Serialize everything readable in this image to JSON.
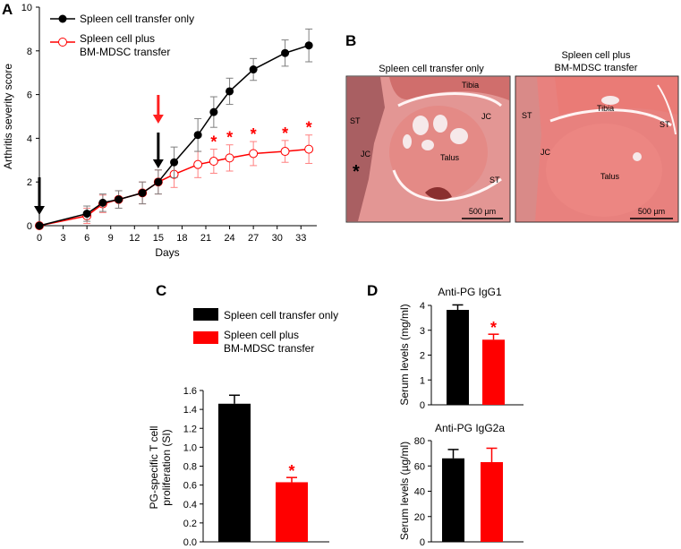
{
  "colors": {
    "control": "#000000",
    "treated": "#ff0000",
    "star": "#ff0000",
    "tissue": "#d87b78",
    "tissue_dark": "#b35a5a",
    "cartilage": "#f6e9ea",
    "background": "#ffffff"
  },
  "panel_labels": {
    "a": "A",
    "b": "B",
    "c": "C",
    "d": "D"
  },
  "chart_data": [
    {
      "id": "A",
      "type": "line",
      "title": "",
      "xlabel": "Days",
      "ylabel": "Arthritis severity score",
      "xlim": [
        0,
        35
      ],
      "ylim": [
        0,
        10
      ],
      "xticks": [
        0,
        3,
        6,
        9,
        12,
        15,
        18,
        21,
        24,
        27,
        30,
        33
      ],
      "yticks": [
        0,
        2,
        4,
        6,
        8,
        10
      ],
      "series": [
        {
          "name": "Spleen cell transfer only",
          "marker": "filled-circle",
          "x": [
            0,
            6,
            8,
            10,
            13,
            15,
            17,
            20,
            22,
            24,
            27,
            31,
            34
          ],
          "y": [
            0,
            0.55,
            1.05,
            1.2,
            1.5,
            2.0,
            2.9,
            4.15,
            5.2,
            6.15,
            7.15,
            7.9,
            8.25
          ],
          "err": [
            0.05,
            0.35,
            0.4,
            0.4,
            0.5,
            0.55,
            0.7,
            0.75,
            0.7,
            0.6,
            0.5,
            0.6,
            0.75
          ]
        },
        {
          "name": "Spleen cell plus BM-MDSC transfer",
          "legend_lines": [
            "Spleen cell plus",
            "BM-MDSC transfer"
          ],
          "marker": "open-circle",
          "x": [
            0,
            6,
            8,
            10,
            13,
            15,
            17,
            20,
            22,
            24,
            27,
            31,
            34
          ],
          "y": [
            0,
            0.45,
            1.0,
            1.2,
            1.5,
            2.0,
            2.35,
            2.8,
            2.95,
            3.1,
            3.3,
            3.4,
            3.5
          ],
          "err": [
            0.05,
            0.35,
            0.4,
            0.4,
            0.5,
            0.55,
            0.6,
            0.6,
            0.55,
            0.6,
            0.55,
            0.5,
            0.65
          ]
        }
      ],
      "significant_x": [
        22,
        24,
        27,
        31,
        34
      ],
      "significance_marker": "*",
      "arrows": [
        {
          "x": 0,
          "color": "black"
        },
        {
          "x": 15,
          "color": "black"
        },
        {
          "x": 15,
          "color": "red"
        }
      ]
    },
    {
      "id": "C",
      "type": "bar",
      "categories": [
        "Spleen cell transfer only",
        "Spleen cell plus BM-MDSC transfer"
      ],
      "legend": [
        "Spleen cell transfer only",
        "Spleen cell plus\nBM-MDSC transfer"
      ],
      "legend_lines": [
        [
          "Spleen cell transfer only"
        ],
        [
          "Spleen cell plus",
          "BM-MDSC transfer"
        ]
      ],
      "values": [
        1.46,
        0.63
      ],
      "err": [
        0.09,
        0.05
      ],
      "ylabel_lines": [
        "PG-specific T cell",
        "proliferation (SI)"
      ],
      "ylim": [
        0,
        1.6
      ],
      "yticks": [
        "0.0",
        "0.2",
        "0.4",
        "0.6",
        "0.8",
        "1.0",
        "1.2",
        "1.4",
        "1.6"
      ],
      "significance": [
        false,
        true
      ],
      "significance_marker": "*"
    },
    {
      "id": "D1",
      "type": "bar",
      "title": "Anti-PG IgG1",
      "categories": [
        "Spleen cell transfer only",
        "Spleen cell plus BM-MDSC transfer"
      ],
      "values": [
        3.82,
        2.62
      ],
      "err": [
        0.2,
        0.22
      ],
      "ylabel": "Serum levels (mg/ml)",
      "ylim": [
        0,
        4
      ],
      "yticks": [
        "0",
        "1",
        "2",
        "3",
        "4"
      ],
      "significance": [
        false,
        true
      ],
      "significance_marker": "*"
    },
    {
      "id": "D2",
      "type": "bar",
      "title": "Anti-PG IgG2a",
      "categories": [
        "Spleen cell transfer only",
        "Spleen cell plus BM-MDSC transfer"
      ],
      "values": [
        66,
        63
      ],
      "err": [
        7,
        11
      ],
      "ylabel": "Serum levels (µg/ml)",
      "ylim": [
        0,
        80
      ],
      "yticks": [
        "0",
        "20",
        "40",
        "60",
        "80"
      ],
      "significance": [
        false,
        false
      ]
    }
  ],
  "histology": {
    "left": {
      "title": "Spleen cell transfer only",
      "labels": {
        "tibia": "Tibia",
        "jc_right": "JC",
        "st_left": "ST",
        "jc_left": "JC",
        "talus": "Talus",
        "st_bottom": "ST",
        "asterisk": "*"
      },
      "scale": "500 µm"
    },
    "right": {
      "title_lines": [
        "Spleen cell plus",
        "BM-MDSC transfer"
      ],
      "labels": {
        "st_left": "ST",
        "tibia": "Tibia",
        "st_right": "ST",
        "jc": "JC",
        "talus": "Talus"
      },
      "scale": "500 µm"
    }
  }
}
